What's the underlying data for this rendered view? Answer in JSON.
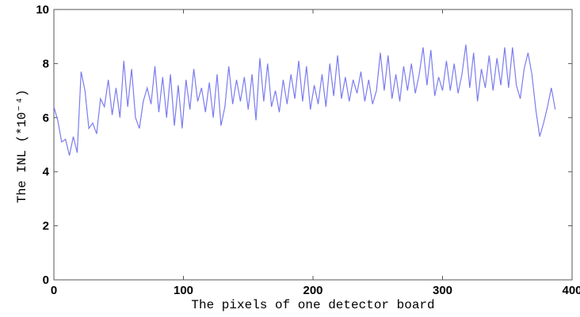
{
  "chart_data": {
    "type": "line",
    "xlabel": "The pixels of one detector board",
    "ylabel": "The INL (*10⁻⁴)",
    "xlim": [
      0,
      400
    ],
    "ylim": [
      0,
      10
    ],
    "xticks": [
      0,
      100,
      200,
      300,
      400
    ],
    "yticks": [
      0,
      2,
      4,
      6,
      8,
      10
    ],
    "x": [
      0,
      3,
      6,
      9,
      12,
      15,
      18,
      21,
      24,
      27,
      30,
      33,
      36,
      39,
      42,
      45,
      48,
      51,
      54,
      57,
      60,
      63,
      66,
      69,
      72,
      75,
      78,
      81,
      84,
      87,
      90,
      93,
      96,
      99,
      102,
      105,
      108,
      111,
      114,
      117,
      120,
      123,
      126,
      129,
      132,
      135,
      138,
      141,
      144,
      147,
      150,
      153,
      156,
      159,
      162,
      165,
      168,
      171,
      174,
      177,
      180,
      183,
      186,
      189,
      192,
      195,
      198,
      201,
      204,
      207,
      210,
      213,
      216,
      219,
      222,
      225,
      228,
      231,
      234,
      237,
      240,
      243,
      246,
      249,
      252,
      255,
      258,
      261,
      264,
      267,
      270,
      273,
      276,
      279,
      282,
      285,
      288,
      291,
      294,
      297,
      300,
      303,
      306,
      309,
      312,
      315,
      318,
      321,
      324,
      327,
      330,
      333,
      336,
      339,
      342,
      345,
      348,
      351,
      354,
      357,
      360,
      363,
      366,
      369,
      372,
      375,
      378,
      381,
      384,
      387
    ],
    "series": [
      {
        "color": "#7b7bf0",
        "values": [
          6.4,
          5.9,
          5.1,
          5.2,
          4.6,
          5.3,
          4.7,
          7.7,
          7.0,
          5.6,
          5.8,
          5.4,
          6.7,
          6.4,
          7.4,
          6.1,
          7.1,
          6.0,
          8.1,
          6.4,
          7.8,
          6.0,
          5.6,
          6.6,
          7.1,
          6.5,
          7.9,
          6.2,
          7.5,
          6.0,
          7.6,
          5.7,
          7.2,
          5.6,
          7.4,
          6.3,
          7.8,
          6.6,
          7.1,
          6.2,
          7.3,
          6.0,
          7.6,
          5.7,
          6.4,
          7.9,
          6.5,
          7.4,
          6.6,
          7.5,
          6.3,
          7.6,
          5.9,
          8.2,
          6.6,
          8.0,
          6.4,
          7.0,
          6.2,
          7.4,
          6.5,
          7.6,
          6.7,
          8.1,
          6.6,
          7.9,
          6.3,
          7.2,
          6.5,
          7.6,
          6.4,
          8.0,
          6.8,
          8.3,
          6.7,
          7.5,
          6.6,
          7.4,
          6.9,
          7.7,
          6.6,
          7.4,
          6.5,
          7.0,
          8.4,
          7.0,
          8.3,
          6.7,
          7.6,
          6.6,
          7.9,
          7.0,
          8.0,
          6.9,
          7.6,
          8.6,
          7.2,
          8.5,
          6.8,
          7.5,
          7.0,
          8.1,
          7.0,
          8.0,
          6.9,
          7.6,
          8.7,
          7.1,
          8.4,
          6.6,
          7.8,
          7.1,
          8.3,
          7.0,
          8.2,
          7.2,
          8.6,
          7.1,
          8.6,
          7.2,
          6.7,
          7.8,
          8.4,
          7.6,
          6.3,
          5.3,
          5.8,
          6.4,
          7.1,
          6.3
        ]
      }
    ]
  }
}
